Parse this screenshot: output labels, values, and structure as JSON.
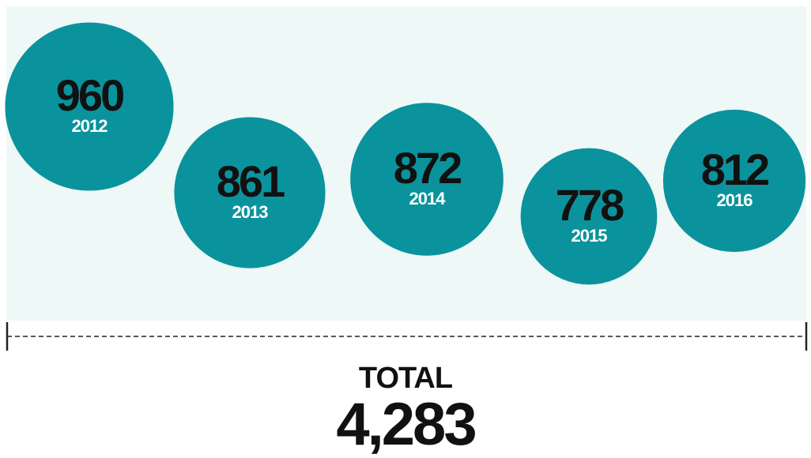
{
  "chart_data": {
    "type": "bubble",
    "categories": [
      "2012",
      "2013",
      "2014",
      "2015",
      "2016"
    ],
    "values": [
      960,
      861,
      872,
      778,
      812
    ],
    "color": "#0a939d",
    "annotation": {
      "title": "TOTAL",
      "value": 4283,
      "label": "4,283"
    }
  }
}
